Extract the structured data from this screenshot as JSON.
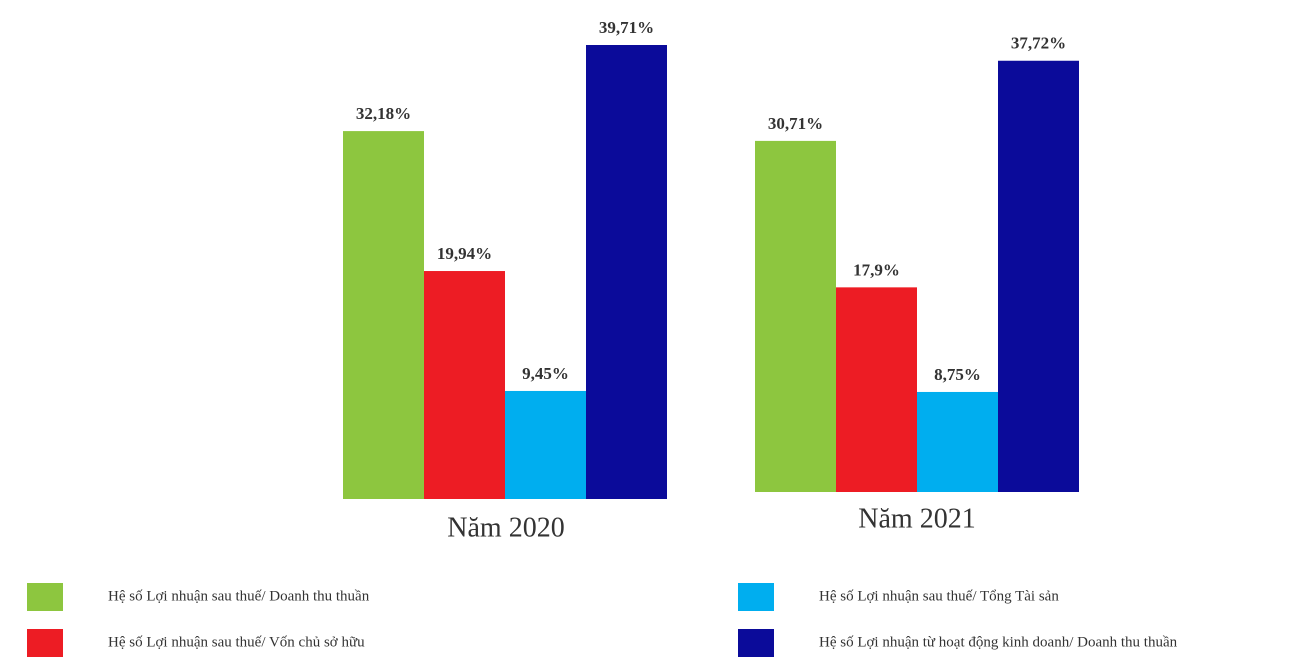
{
  "chart_data": {
    "type": "bar",
    "categories": [
      "Năm 2020",
      "Năm 2021"
    ],
    "series": [
      {
        "name": "Hệ số Lợi nhuận sau thuế/ Doanh thu thuần",
        "color": "#8dc63f",
        "values": [
          32.18,
          30.71
        ],
        "value_labels": [
          "32,18%",
          "30,71%"
        ]
      },
      {
        "name": "Hệ số Lợi nhuận sau thuế/ Vốn chủ sở hữu",
        "color": "#ed1c24",
        "values": [
          19.94,
          17.9
        ],
        "value_labels": [
          "19,94%",
          "17,9%"
        ]
      },
      {
        "name": "Hệ số Lợi nhuận sau thuế/ Tổng Tài sản",
        "color": "#00aeef",
        "values": [
          9.45,
          8.75
        ],
        "value_labels": [
          "9,45%",
          "8,75%"
        ]
      },
      {
        "name": "Hệ số Lợi nhuận từ hoạt động kinh doanh/ Doanh thu thuần",
        "color": "#0b0b9a",
        "values": [
          39.71,
          37.72
        ],
        "value_labels": [
          "39,71%",
          "37,72%"
        ]
      }
    ]
  }
}
